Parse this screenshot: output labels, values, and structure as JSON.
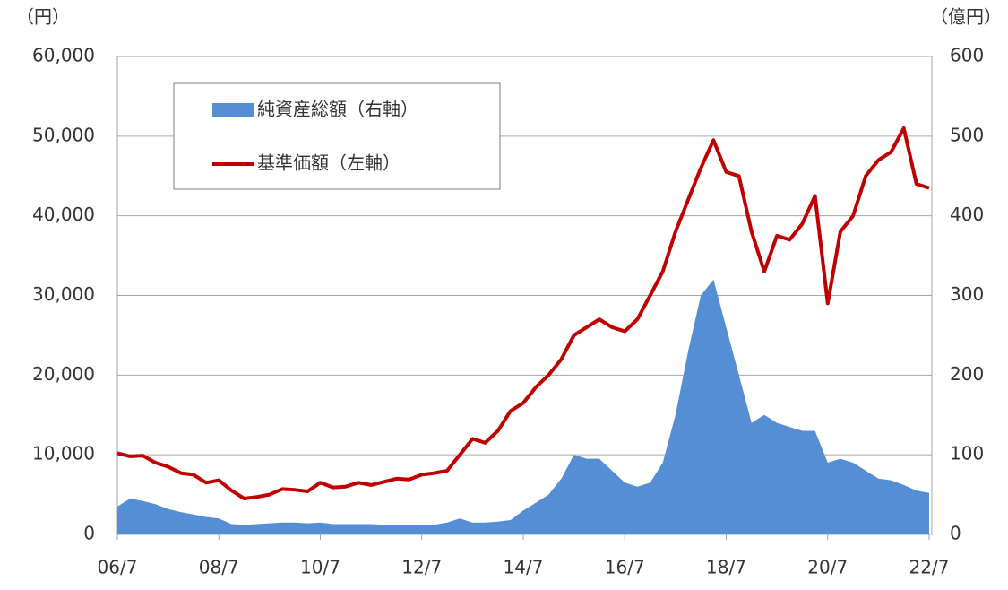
{
  "chart_data": {
    "type": "line",
    "y_label": "（円）",
    "y2_label": "（億円）",
    "x": [
      "06/7",
      "06/10",
      "07/1",
      "07/4",
      "07/7",
      "07/10",
      "08/1",
      "08/4",
      "08/7",
      "08/10",
      "09/1",
      "09/4",
      "09/7",
      "09/10",
      "10/1",
      "10/4",
      "10/7",
      "10/10",
      "11/1",
      "11/4",
      "11/7",
      "11/10",
      "12/1",
      "12/4",
      "12/7",
      "12/10",
      "13/1",
      "13/4",
      "13/7",
      "13/10",
      "14/1",
      "14/4",
      "14/7",
      "14/10",
      "15/1",
      "15/4",
      "15/7",
      "15/10",
      "16/1",
      "16/4",
      "16/7",
      "16/10",
      "17/1",
      "17/4",
      "17/7",
      "17/10",
      "18/1",
      "18/4",
      "18/7",
      "18/10",
      "19/1",
      "19/4",
      "19/7",
      "19/10",
      "20/1",
      "20/4",
      "20/7",
      "20/10",
      "21/1",
      "21/4",
      "21/7",
      "21/10",
      "22/1",
      "22/4",
      "22/7"
    ],
    "xticks": [
      "06/7",
      "08/7",
      "10/7",
      "12/7",
      "14/7",
      "16/7",
      "18/7",
      "20/7",
      "22/7"
    ],
    "ylim": [
      0,
      60000
    ],
    "yticks": [
      0,
      {
        "value": 10000,
        "label": "10,000"
      },
      {
        "value": 20000,
        "label": "20,000"
      },
      {
        "value": 30000,
        "label": "30,000"
      },
      {
        "value": 40000,
        "label": "40,000"
      },
      {
        "value": 50000,
        "label": "50,000"
      },
      {
        "value": 60000,
        "label": "60,000"
      }
    ],
    "y2lim": [
      0,
      600
    ],
    "y2ticks": [
      0,
      100,
      200,
      300,
      400,
      500,
      600
    ],
    "grid": true,
    "legend": "upper-left",
    "series": [
      {
        "name": "純資産総額（右軸）",
        "type": "area",
        "axis": "y2",
        "color": "#558ed5",
        "values": [
          35,
          45,
          42,
          38,
          32,
          28,
          25,
          22,
          20,
          13,
          12,
          13,
          14,
          15,
          15,
          14,
          15,
          13,
          13,
          13,
          13,
          12,
          12,
          12,
          12,
          12,
          15,
          20,
          15,
          15,
          16,
          18,
          30,
          40,
          50,
          70,
          100,
          95,
          95,
          80,
          65,
          60,
          65,
          90,
          150,
          230,
          300,
          320,
          260,
          200,
          140,
          150,
          140,
          135,
          130,
          130,
          90,
          95,
          90,
          80,
          70,
          68,
          62,
          55,
          52
        ]
      },
      {
        "name": "基準価額（左軸）",
        "type": "line",
        "color": "#c00000",
        "values": [
          10200,
          9800,
          9900,
          9000,
          8500,
          7700,
          7500,
          6500,
          6800,
          5500,
          4500,
          4700,
          5000,
          5700,
          5600,
          5400,
          6500,
          5900,
          6000,
          6500,
          6200,
          6600,
          7000,
          6900,
          7500,
          7700,
          8000,
          10000,
          12000,
          11500,
          13000,
          15500,
          16500,
          18500,
          20000,
          22000,
          25000,
          26000,
          27000,
          26000,
          25500,
          27000,
          30000,
          33000,
          38000,
          42000,
          46000,
          49500,
          45500,
          45000,
          38000,
          33000,
          37500,
          37000,
          39000,
          42500,
          29000,
          38000,
          40000,
          45000,
          47000,
          48000,
          51000,
          44000,
          43500
        ]
      }
    ]
  }
}
